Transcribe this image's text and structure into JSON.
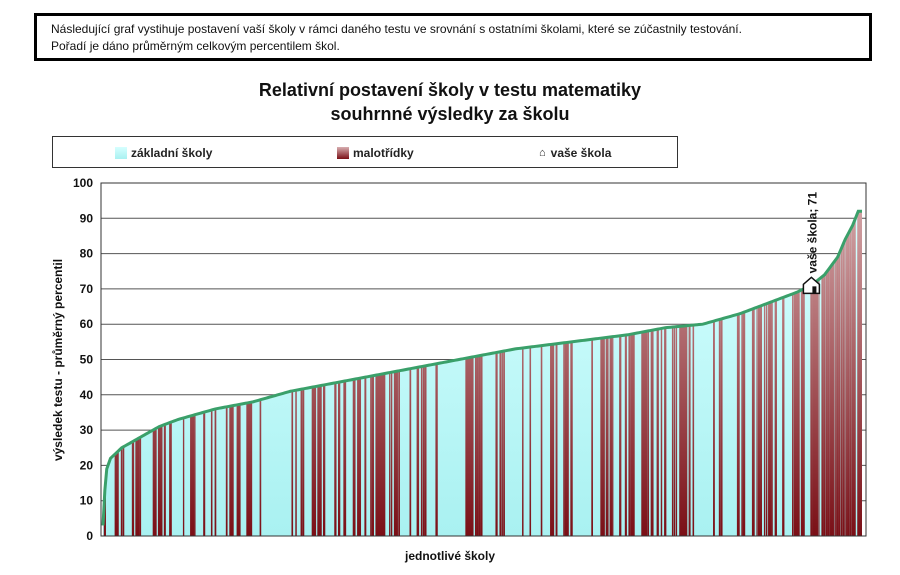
{
  "note": {
    "line1": "Následující graf vystihuje postavení vaší školy v rámci daného testu ve srovnání s ostatními školami, které se zúčastnily testování.",
    "line2": "Pořadí je dáno průměrným celkovým percentilem škol."
  },
  "colors": {
    "zakladni_top": "#d6ffff",
    "zakladni_bottom": "#a9f1f1",
    "malotridky_top": "#d8aeb0",
    "malotridky_bottom": "#7a0f16",
    "line": "#3aa06a",
    "grid": "#555555"
  },
  "chart_data": {
    "type": "area",
    "title": "Relativní postavení školy v testu matematiky",
    "subtitle": "souhrnné výsledky za školu",
    "xlabel": "jednotlivé školy",
    "ylabel": "výsledek testu - průměrný percentil",
    "ylim": [
      0,
      100
    ],
    "yticks": [
      0,
      10,
      20,
      30,
      40,
      50,
      60,
      70,
      80,
      90,
      100
    ],
    "grid": true,
    "legend_position": "top",
    "legend": [
      {
        "label": "základní školy",
        "icon": "cyan-swatch"
      },
      {
        "label": "malotřídky",
        "icon": "maroon-swatch"
      },
      {
        "label": "vaše škola",
        "icon": "house-icon"
      }
    ],
    "curve_keypoints": [
      {
        "rank": 0,
        "value": 3
      },
      {
        "rank": 1,
        "value": 13
      },
      {
        "rank": 2,
        "value": 19
      },
      {
        "rank": 4,
        "value": 22
      },
      {
        "rank": 10,
        "value": 25
      },
      {
        "rank": 20,
        "value": 28
      },
      {
        "rank": 30,
        "value": 31
      },
      {
        "rank": 40,
        "value": 33
      },
      {
        "rank": 60,
        "value": 36
      },
      {
        "rank": 80,
        "value": 38
      },
      {
        "rank": 100,
        "value": 41
      },
      {
        "rank": 130,
        "value": 44
      },
      {
        "rank": 160,
        "value": 47
      },
      {
        "rank": 190,
        "value": 50
      },
      {
        "rank": 220,
        "value": 53
      },
      {
        "rank": 250,
        "value": 55
      },
      {
        "rank": 280,
        "value": 57
      },
      {
        "rank": 300,
        "value": 59
      },
      {
        "rank": 320,
        "value": 60
      },
      {
        "rank": 340,
        "value": 63
      },
      {
        "rank": 360,
        "value": 67
      },
      {
        "rank": 370,
        "value": 69
      },
      {
        "rank": 378,
        "value": 71
      },
      {
        "rank": 385,
        "value": 74
      },
      {
        "rank": 392,
        "value": 79
      },
      {
        "rank": 396,
        "value": 84
      },
      {
        "rank": 400,
        "value": 88
      },
      {
        "rank": 403,
        "value": 92
      },
      {
        "rank": 405,
        "value": 92
      }
    ],
    "school_count": 406,
    "your_school": {
      "rank": 378,
      "value": 71,
      "label": "vaše škola; 71"
    }
  }
}
